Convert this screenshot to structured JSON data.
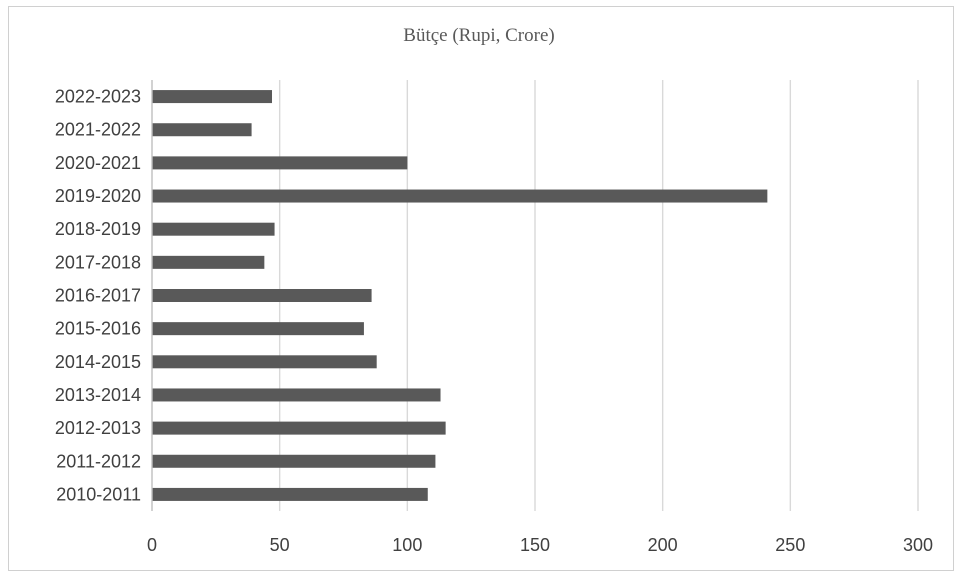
{
  "chart_data": {
    "type": "bar",
    "orientation": "horizontal",
    "title": "Bütçe (Rupi, Crore)",
    "xlabel": "",
    "ylabel": "",
    "xlim": [
      0,
      300
    ],
    "x_ticks": [
      0,
      50,
      100,
      150,
      200,
      250,
      300
    ],
    "grid": true,
    "legend": "none",
    "bar_color": "#595959",
    "categories": [
      "2010-2011",
      "2011-2012",
      "2012-2013",
      "2013-2014",
      "2014-2015",
      "2015-2016",
      "2016-2017",
      "2017-2018",
      "2018-2019",
      "2019-2020",
      "2020-2021",
      "2021-2022",
      "2022-2023"
    ],
    "values": [
      108,
      111,
      115,
      113,
      88,
      83,
      86,
      44,
      48,
      241,
      100,
      39,
      47
    ]
  }
}
